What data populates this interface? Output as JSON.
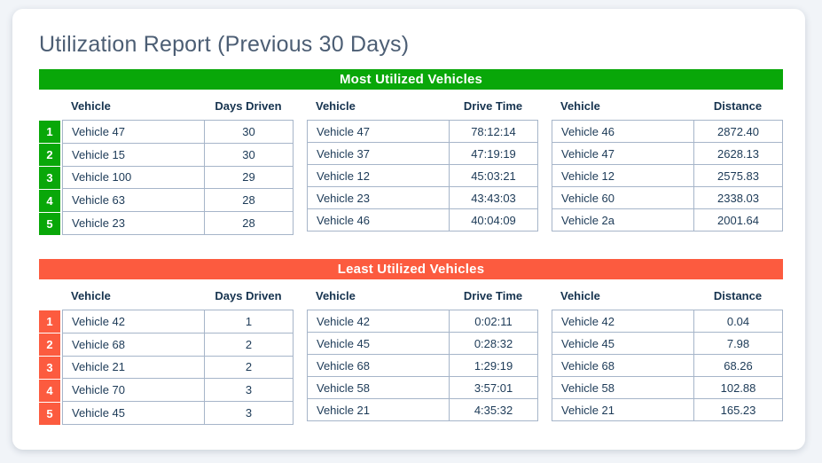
{
  "report": {
    "title": "Utilization Report (Previous 30 Days)",
    "sections": [
      {
        "name": "most-utilized",
        "title": "Most Utilized Vehicles",
        "accent": "#09a709",
        "ranks": [
          "1",
          "2",
          "3",
          "4",
          "5"
        ],
        "tables": [
          {
            "name": "days-driven",
            "ranked": true,
            "columns": [
              "Vehicle",
              "Days Driven"
            ],
            "rows": [
              [
                "Vehicle 47",
                "30"
              ],
              [
                "Vehicle 15",
                "30"
              ],
              [
                "Vehicle 100",
                "29"
              ],
              [
                "Vehicle 63",
                "28"
              ],
              [
                "Vehicle 23",
                "28"
              ]
            ]
          },
          {
            "name": "drive-time",
            "ranked": false,
            "columns": [
              "Vehicle",
              "Drive Time"
            ],
            "rows": [
              [
                "Vehicle 47",
                "78:12:14"
              ],
              [
                "Vehicle 37",
                "47:19:19"
              ],
              [
                "Vehicle 12",
                "45:03:21"
              ],
              [
                "Vehicle 23",
                "43:43:03"
              ],
              [
                "Vehicle 46",
                "40:04:09"
              ]
            ]
          },
          {
            "name": "distance",
            "ranked": false,
            "columns": [
              "Vehicle",
              "Distance"
            ],
            "rows": [
              [
                "Vehicle 46",
                "2872.40"
              ],
              [
                "Vehicle 47",
                "2628.13"
              ],
              [
                "Vehicle 12",
                "2575.83"
              ],
              [
                "Vehicle 60",
                "2338.03"
              ],
              [
                "Vehicle 2a",
                "2001.64"
              ]
            ]
          }
        ]
      },
      {
        "name": "least-utilized",
        "title": "Least Utilized Vehicles",
        "accent": "#fc5b3f",
        "ranks": [
          "1",
          "2",
          "3",
          "4",
          "5"
        ],
        "tables": [
          {
            "name": "days-driven",
            "ranked": true,
            "columns": [
              "Vehicle",
              "Days Driven"
            ],
            "rows": [
              [
                "Vehicle 42",
                "1"
              ],
              [
                "Vehicle 68",
                "2"
              ],
              [
                "Vehicle 21",
                "2"
              ],
              [
                "Vehicle 70",
                "3"
              ],
              [
                "Vehicle 45",
                "3"
              ]
            ]
          },
          {
            "name": "drive-time",
            "ranked": false,
            "columns": [
              "Vehicle",
              "Drive Time"
            ],
            "rows": [
              [
                "Vehicle 42",
                "0:02:11"
              ],
              [
                "Vehicle 45",
                "0:28:32"
              ],
              [
                "Vehicle 68",
                "1:29:19"
              ],
              [
                "Vehicle 58",
                "3:57:01"
              ],
              [
                "Vehicle 21",
                "4:35:32"
              ]
            ]
          },
          {
            "name": "distance",
            "ranked": false,
            "columns": [
              "Vehicle",
              "Distance"
            ],
            "rows": [
              [
                "Vehicle 42",
                "0.04"
              ],
              [
                "Vehicle 45",
                "7.98"
              ],
              [
                "Vehicle 68",
                "68.26"
              ],
              [
                "Vehicle 58",
                "102.88"
              ],
              [
                "Vehicle 21",
                "165.23"
              ]
            ]
          }
        ]
      }
    ],
    "colors": {
      "most_accent": "#09a709",
      "least_accent": "#fc5b3f",
      "table_border": "#a6b5c9",
      "text": "#1c3a57",
      "title_text": "#4c5e74"
    }
  }
}
